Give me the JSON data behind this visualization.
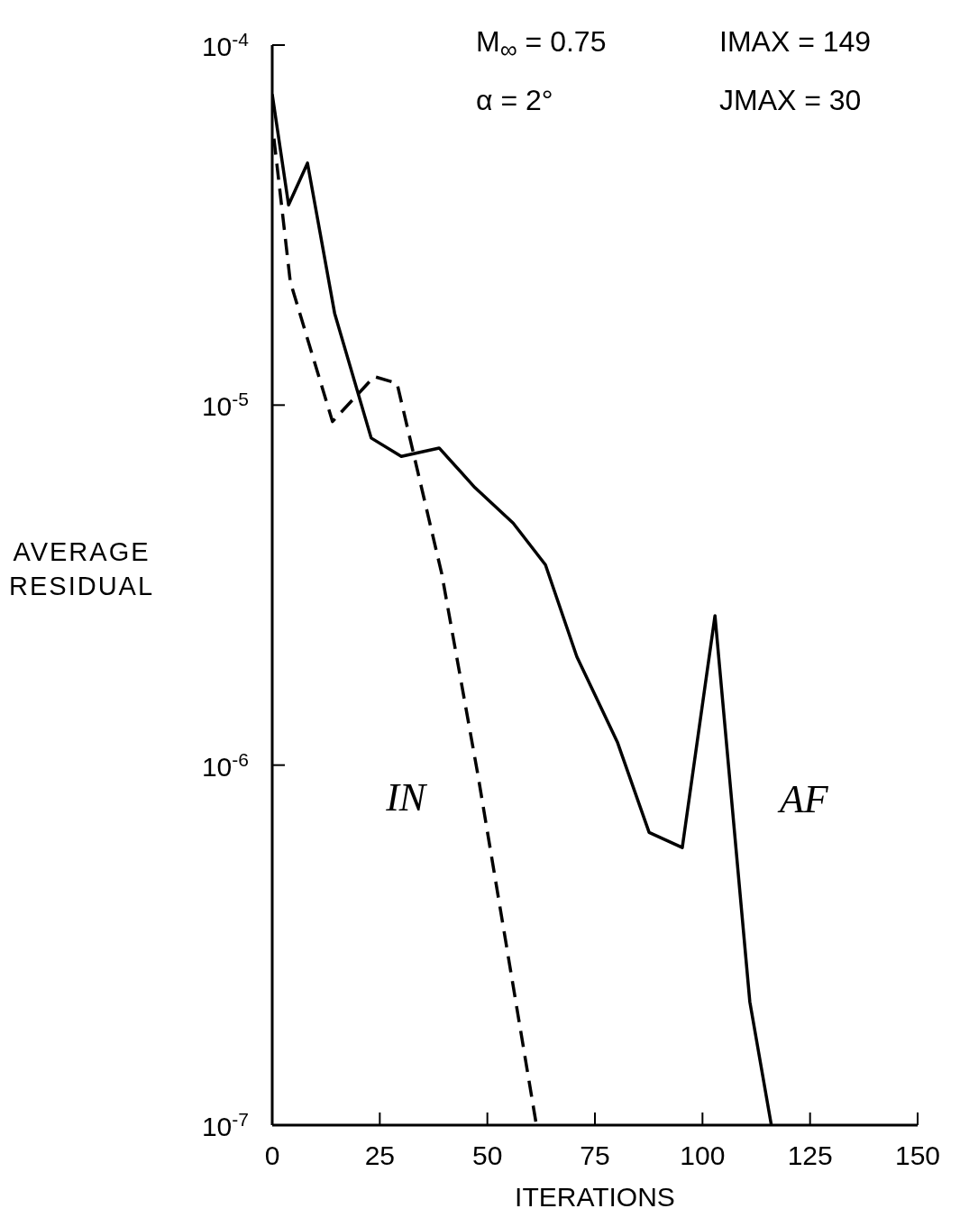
{
  "chart_data": {
    "type": "line",
    "xlabel": "ITERATIONS",
    "ylabel": "AVERAGE RESIDUAL",
    "annotations": [
      "M$_{∞}$ = 0.75",
      "IMAX = 149",
      "α = 2°",
      "JMAX = 30"
    ],
    "log": "y",
    "marker": "none",
    "xlim": [
      0,
      150
    ],
    "xticks": [
      0,
      25,
      50,
      75,
      100,
      125,
      150
    ],
    "ylim": [
      1e-07,
      0.0001
    ],
    "yticks": [
      {
        "value": 1e-07,
        "label": "10$^{-7}$"
      },
      {
        "value": 1e-06,
        "label": "10$^{-6}$"
      },
      {
        "value": 1e-05,
        "label": "10$^{-5}$"
      },
      {
        "value": 0.0001,
        "label": "10$^{-4}$"
      }
    ],
    "series": [
      {
        "name": "AF",
        "color": "#000000",
        "line_style": "solid",
        "x": [
          0,
          3.8,
          8.2,
          14.5,
          23,
          30,
          38.8,
          47.1,
          56,
          63.5,
          70.8,
          80.2,
          87.6,
          95.3,
          102.9,
          111,
          116
        ],
        "values": [
          7.3e-05,
          3.6e-05,
          4.7e-05,
          1.8e-05,
          8.1e-06,
          7.2e-06,
          7.6e-06,
          5.9e-06,
          4.7e-06,
          3.6e-06,
          2e-06,
          1.16e-06,
          6.5e-07,
          5.9e-07,
          2.6e-06,
          2.2e-07,
          1e-07
        ]
      },
      {
        "name": "IN",
        "color": "#000000",
        "line_style": "dashed",
        "x": [
          0.4,
          4.2,
          14,
          23.7,
          29,
          39.4,
          47.8,
          61.4
        ],
        "values": [
          5.5e-05,
          2.2e-05,
          9e-06,
          1.2e-05,
          1.15e-05,
          3.4e-06,
          9.4e-07,
          1e-07
        ]
      }
    ]
  }
}
